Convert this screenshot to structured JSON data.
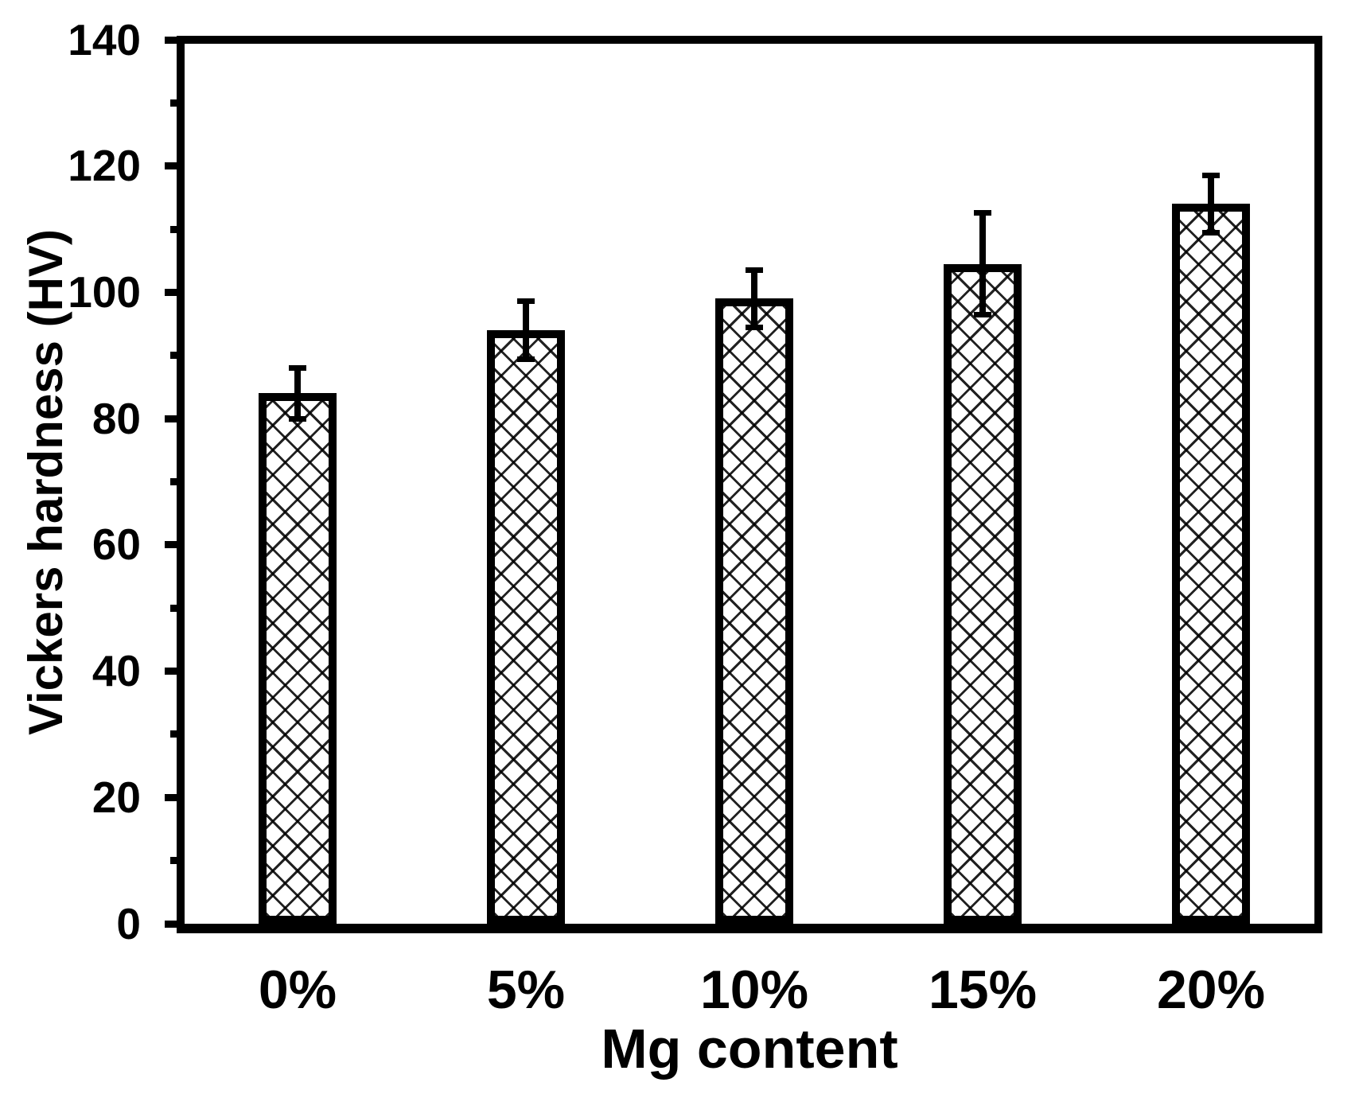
{
  "colors": {
    "ink": "#000000",
    "background": "#ffffff"
  },
  "chart_data": {
    "type": "bar",
    "title": "",
    "categories": [
      "0%",
      "5%",
      "10%",
      "15%",
      "20%"
    ],
    "series": [
      {
        "name": "Vickers hardness",
        "values": [
          84,
          94,
          99,
          104.5,
          114
        ],
        "errors": [
          4.5,
          5,
          5,
          8.5,
          5
        ]
      }
    ],
    "xlabel": "Mg content",
    "ylabel": "Vickers hardness (HV)",
    "ylim": [
      0,
      140
    ],
    "y_major_ticks": [
      0,
      20,
      40,
      60,
      80,
      100,
      120,
      140
    ],
    "y_minor_ticks": [
      10,
      30,
      50,
      70,
      90,
      110,
      130
    ],
    "bar_style": {
      "fill": "#ffffff",
      "hatch": "dense-crosshatch",
      "edge_color": "#000000"
    },
    "grid": false,
    "legend_position": "none"
  }
}
